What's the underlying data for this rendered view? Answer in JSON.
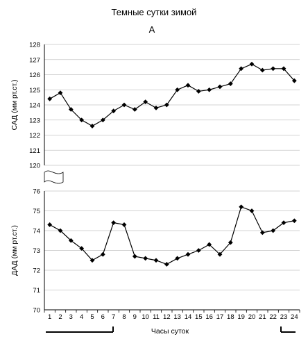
{
  "figure": {
    "title": "Темные сутки зимой",
    "panel_label": "А",
    "xlabel": "Часы суток"
  },
  "chart_data": [
    {
      "type": "line",
      "name": "top",
      "ylabel": "САД (мм рт.ст.)",
      "ylim": [
        120,
        128
      ],
      "yticks": [
        "120",
        "121",
        "122",
        "123",
        "124",
        "125",
        "126",
        "127",
        "128"
      ],
      "x": [
        1,
        2,
        3,
        4,
        5,
        6,
        7,
        8,
        9,
        10,
        11,
        12,
        13,
        14,
        15,
        16,
        17,
        18,
        19,
        20,
        21,
        22,
        23,
        24
      ],
      "values": [
        124.4,
        124.8,
        123.7,
        123.0,
        122.6,
        123.0,
        123.6,
        124.0,
        123.7,
        124.2,
        123.8,
        124.0,
        125.0,
        125.3,
        124.9,
        125.0,
        125.2,
        125.4,
        126.4,
        126.7,
        126.3,
        126.4,
        126.4,
        125.6
      ],
      "grid": true,
      "marker": "diamond",
      "color": "#000000"
    },
    {
      "type": "line",
      "name": "bottom",
      "ylabel": "ДАД (мм рт.ст.)",
      "ylim": [
        70,
        76
      ],
      "yticks": [
        "70",
        "71",
        "72",
        "73",
        "74",
        "75",
        "76"
      ],
      "x": [
        1,
        2,
        3,
        4,
        5,
        6,
        7,
        8,
        9,
        10,
        11,
        12,
        13,
        14,
        15,
        16,
        17,
        18,
        19,
        20,
        21,
        22,
        23,
        24
      ],
      "xticks": [
        "1",
        "2",
        "3",
        "4",
        "5",
        "6",
        "7",
        "8",
        "9",
        "10",
        "11",
        "12",
        "13",
        "14",
        "15",
        "16",
        "17",
        "18",
        "19",
        "20",
        "21",
        "22",
        "23",
        "24"
      ],
      "values": [
        74.3,
        74.0,
        73.5,
        73.1,
        72.5,
        72.8,
        74.4,
        74.3,
        72.7,
        72.6,
        72.5,
        72.3,
        72.6,
        72.8,
        73.0,
        73.3,
        72.8,
        73.4,
        75.2,
        75.0,
        73.9,
        74.0,
        74.4,
        74.5
      ],
      "grid": true,
      "marker": "diamond",
      "color": "#000000"
    }
  ]
}
